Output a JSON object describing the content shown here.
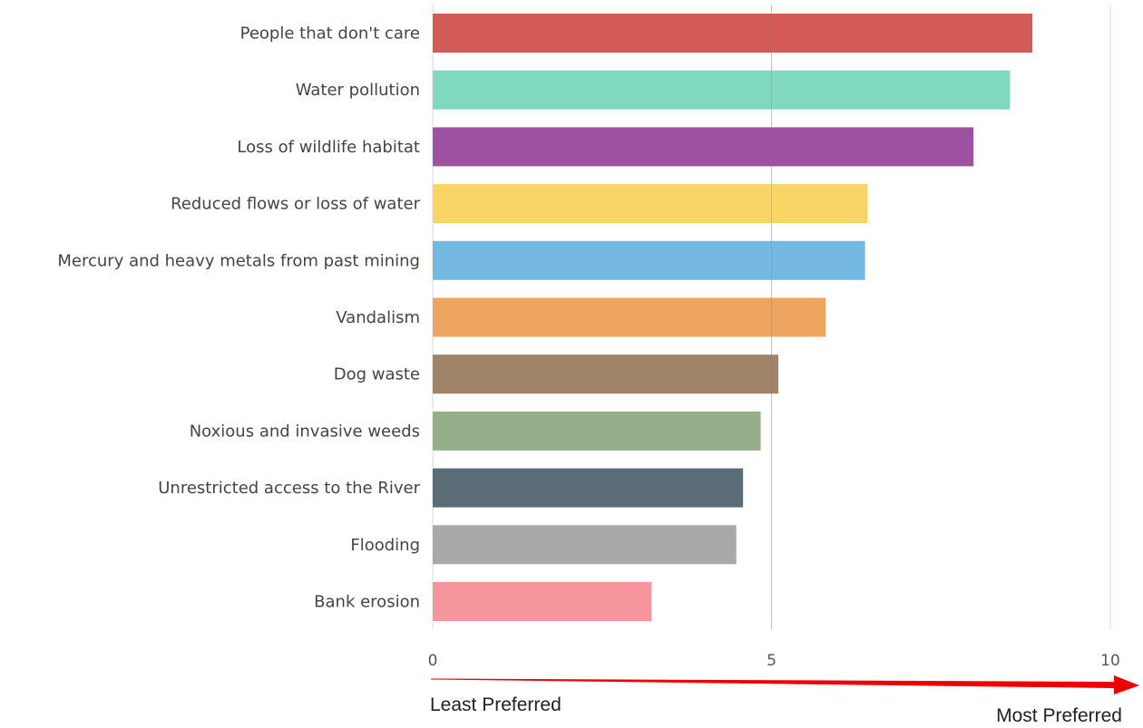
{
  "chart_data": {
    "type": "bar",
    "orientation": "horizontal",
    "categories": [
      "People that don't care",
      "Water pollution",
      "Loss of wildlife habitat",
      "Reduced flows or loss of water",
      "Mercury and heavy metals from past mining",
      "Vandalism",
      "Dog waste",
      "Noxious and invasive weeds",
      "Unrestricted access to the River",
      "Flooding",
      "Bank erosion"
    ],
    "values": [
      8.85,
      8.52,
      7.98,
      6.42,
      6.38,
      5.8,
      5.1,
      4.84,
      4.58,
      4.48,
      3.23
    ],
    "colors": [
      "#d35b57",
      "#7fd8bf",
      "#9e51a1",
      "#f8d466",
      "#75b9e3",
      "#eda55f",
      "#a0846a",
      "#95af8a",
      "#5a6d76",
      "#a9a9a9",
      "#f6969c"
    ],
    "xlim": [
      0,
      10
    ],
    "x_ticks": [
      "0",
      "5",
      "10"
    ],
    "grid": true,
    "arrow": {
      "start_label": "Least Preferred",
      "end_label": "Most Preferred",
      "color": "#ee0000"
    }
  }
}
